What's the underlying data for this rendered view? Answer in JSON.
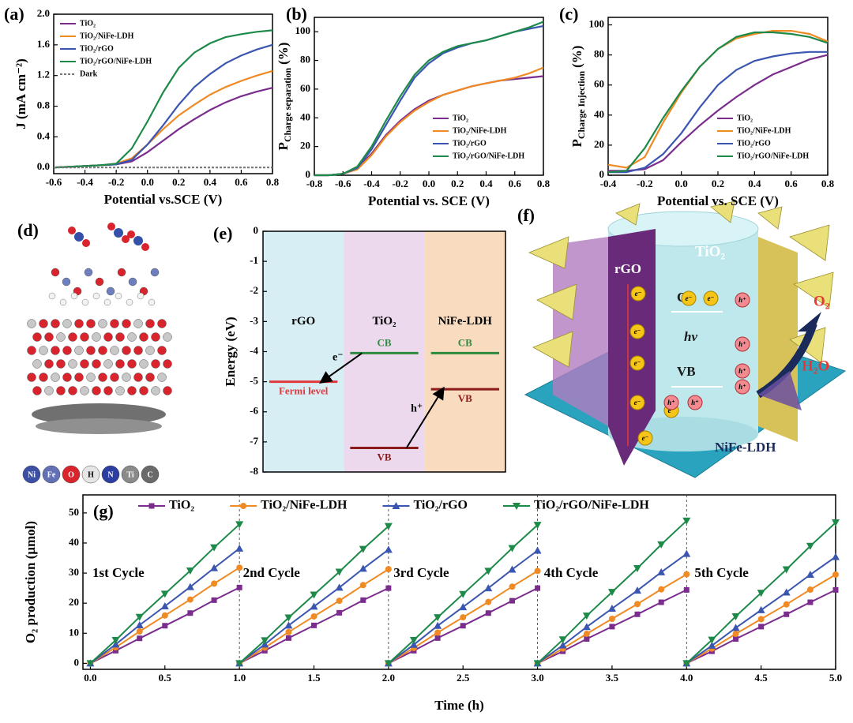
{
  "chart_data": [
    {
      "type": "line",
      "panel": "(a)",
      "ylabel": "J (mA cm⁻²)",
      "xlabel": "Potential vs.SCE (V)",
      "x": [
        -0.6,
        -0.5,
        -0.4,
        -0.3,
        -0.2,
        -0.1,
        0,
        0.1,
        0.2,
        0.3,
        0.4,
        0.5,
        0.6,
        0.7,
        0.8
      ],
      "xlim": [
        -0.6,
        0.8
      ],
      "xticks": [
        -0.6,
        -0.4,
        -0.2,
        {
          "value": 0,
          "label": "0.0"
        },
        0.2,
        0.4,
        0.6,
        0.8
      ],
      "ylim": [
        -0.08,
        2.0
      ],
      "yticks": [
        {
          "value": 0,
          "label": "0.0"
        },
        0.4,
        0.8,
        1.2,
        1.6,
        {
          "value": 2,
          "label": "2.0"
        }
      ],
      "legend": "upper left",
      "series": [
        {
          "name": "TiO₂",
          "color": "#7b2d8e",
          "values": [
            0,
            0.01,
            0.02,
            0.03,
            0.04,
            0.08,
            0.2,
            0.35,
            0.5,
            0.63,
            0.75,
            0.85,
            0.93,
            0.99,
            1.04
          ]
        },
        {
          "name": "TiO₂/NiFe-LDH",
          "color": "#f08a24",
          "values": [
            0,
            0.01,
            0.02,
            0.03,
            0.05,
            0.12,
            0.3,
            0.5,
            0.68,
            0.82,
            0.95,
            1.05,
            1.13,
            1.2,
            1.26
          ]
        },
        {
          "name": "TiO₂/rGO",
          "color": "#3b56b0",
          "values": [
            0,
            0.01,
            0.02,
            0.03,
            0.04,
            0.1,
            0.3,
            0.55,
            0.82,
            1.05,
            1.22,
            1.36,
            1.46,
            1.54,
            1.6
          ]
        },
        {
          "name": "TiO₂/rGO/NiFe-LDH",
          "color": "#1e8a4a",
          "values": [
            0,
            0.01,
            0.02,
            0.03,
            0.05,
            0.25,
            0.6,
            0.98,
            1.3,
            1.5,
            1.62,
            1.7,
            1.74,
            1.77,
            1.79
          ]
        },
        {
          "name": "Dark",
          "color": "#777777",
          "dash": true,
          "values": [
            0,
            0,
            0,
            0,
            0,
            0,
            0,
            0,
            0,
            0,
            0,
            0,
            0,
            0,
            0
          ]
        }
      ]
    },
    {
      "type": "line",
      "panel": "(b)",
      "ylabel": {
        "main": "P",
        "sub": "Charge separation",
        "unit": "(%)"
      },
      "xlabel": "Potential vs. SCE (V)",
      "x": [
        -0.8,
        -0.7,
        -0.6,
        -0.5,
        -0.4,
        -0.3,
        -0.2,
        -0.1,
        0,
        0.1,
        0.2,
        0.3,
        0.4,
        0.5,
        0.6,
        0.7,
        0.8
      ],
      "xlim": [
        -0.8,
        0.8
      ],
      "xticks": [
        -0.8,
        -0.6,
        -0.4,
        -0.2,
        {
          "value": 0,
          "label": "0.0"
        },
        0.2,
        0.4,
        0.6,
        0.8
      ],
      "ylim": [
        0,
        110
      ],
      "yticks": [
        0,
        20,
        40,
        60,
        80,
        100
      ],
      "legend": "lower right",
      "series": [
        {
          "name": "TiO₂",
          "color": "#7b2d8e",
          "values": [
            0,
            0,
            1,
            5,
            15,
            28,
            38,
            46,
            52,
            56,
            59,
            62,
            64,
            66,
            67,
            68,
            69
          ]
        },
        {
          "name": "TiO₂/NiFe-LDH",
          "color": "#f08a24",
          "values": [
            0,
            0,
            1,
            4,
            14,
            27,
            37,
            45,
            51,
            56,
            59,
            62,
            64,
            66,
            68,
            71,
            75
          ]
        },
        {
          "name": "TiO₂/rGO",
          "color": "#3b56b0",
          "values": [
            0,
            0,
            1,
            5,
            18,
            35,
            52,
            68,
            78,
            85,
            89,
            92,
            94,
            97,
            100,
            102,
            104
          ]
        },
        {
          "name": "TiO₂/rGO/NiFe-LDH",
          "color": "#1e8a4a",
          "values": [
            0,
            0,
            1,
            6,
            20,
            38,
            55,
            70,
            80,
            86,
            90,
            92,
            94,
            97,
            100,
            103,
            107
          ]
        }
      ]
    },
    {
      "type": "line",
      "panel": "(c)",
      "ylabel": {
        "main": "P",
        "sub": "Charge Injection",
        "unit": "(%)"
      },
      "xlabel": "Potential vs. SCE (V)",
      "x": [
        -0.4,
        -0.3,
        -0.2,
        -0.1,
        0,
        0.1,
        0.2,
        0.3,
        0.4,
        0.5,
        0.6,
        0.7,
        0.8
      ],
      "xlim": [
        -0.4,
        0.8
      ],
      "xticks": [
        -0.4,
        -0.2,
        {
          "value": 0,
          "label": "0.0"
        },
        0.2,
        0.4,
        0.6,
        0.8
      ],
      "ylim": [
        0,
        105
      ],
      "yticks": [
        0,
        20,
        40,
        60,
        80,
        100
      ],
      "legend": "lower right",
      "series": [
        {
          "name": "TiO₂",
          "color": "#7b2d8e",
          "values": [
            3,
            3,
            4,
            10,
            22,
            33,
            43,
            52,
            60,
            67,
            72,
            77,
            80
          ]
        },
        {
          "name": "TiO₂/NiFe-LDH",
          "color": "#f08a24",
          "values": [
            7,
            5,
            12,
            35,
            55,
            72,
            84,
            91,
            94,
            96,
            96,
            94,
            89
          ]
        },
        {
          "name": "TiO₂/rGO",
          "color": "#3b56b0",
          "values": [
            2,
            2,
            5,
            14,
            28,
            45,
            60,
            70,
            76,
            79,
            81,
            82,
            82
          ]
        },
        {
          "name": "TiO₂/rGO/NiFe-LDH",
          "color": "#1e8a4a",
          "values": [
            2,
            3,
            18,
            38,
            56,
            72,
            84,
            92,
            95,
            95,
            94,
            92,
            88
          ]
        }
      ]
    },
    {
      "type": "energy",
      "panel": "(e)",
      "ylabel": "Energy (eV)",
      "ylim": [
        -8,
        0
      ],
      "yticks": [
        -8,
        -7,
        -6,
        -5,
        -4,
        -3,
        -2,
        -1,
        0
      ],
      "regions": [
        "rGO",
        "TiO₂",
        "NiFe-LDH"
      ],
      "region_colors": [
        "#d8eef5",
        "#ecd9ee",
        "#f9dcc0"
      ],
      "levels": [
        {
          "region": 0,
          "label": "Fermi level",
          "value": -5.0,
          "color": "#e0393e"
        },
        {
          "region": 1,
          "label": "CB",
          "value": -4.05,
          "color": "#2e8b3e"
        },
        {
          "region": 1,
          "label": "VB",
          "value": -7.2,
          "color": "#8b1a1a"
        },
        {
          "region": 2,
          "label": "CB",
          "value": -4.05,
          "color": "#2e8b3e"
        },
        {
          "region": 2,
          "label": "VB",
          "value": -5.25,
          "color": "#8b1a1a"
        }
      ],
      "annotations": [
        "e⁻",
        "h⁺"
      ]
    },
    {
      "type": "line",
      "panel": "(g)",
      "ylabel": "O₂ production (μmol)",
      "xlabel": "Time (h)",
      "x": [
        0,
        0.17,
        0.33,
        0.5,
        0.67,
        0.83,
        1,
        null,
        1,
        1.17,
        1.33,
        1.5,
        1.67,
        1.83,
        2,
        null,
        2,
        2.17,
        2.33,
        2.5,
        2.67,
        2.83,
        3,
        null,
        3,
        3.17,
        3.33,
        3.5,
        3.67,
        3.83,
        4,
        null,
        4,
        4.17,
        4.33,
        4.5,
        4.67,
        4.83,
        5
      ],
      "xlim": [
        -0.05,
        5.0
      ],
      "xticks": [
        {
          "value": 0,
          "label": "0.0"
        },
        0.5,
        {
          "value": 1,
          "label": "1.0"
        },
        1.5,
        {
          "value": 2,
          "label": "2.0"
        },
        2.5,
        {
          "value": 3,
          "label": "3.0"
        },
        3.5,
        {
          "value": 4,
          "label": "4.0"
        },
        4.5,
        {
          "value": 5,
          "label": "5.0"
        }
      ],
      "ylim": [
        -2,
        56
      ],
      "yticks": [
        0,
        10,
        20,
        30,
        40,
        50
      ],
      "legend": "top",
      "annotations": [
        "1st Cycle",
        "2nd Cycle",
        "3rd Cycle",
        "4th Cycle",
        "5th Cycle"
      ],
      "series": [
        {
          "name": "TiO₂",
          "color": "#7b2d8e",
          "marker": "square",
          "values": [
            0,
            4.2,
            8.3,
            12.5,
            16.7,
            21,
            25.2,
            null,
            0,
            4.2,
            8.4,
            12.6,
            16.8,
            21,
            25,
            null,
            0,
            4.2,
            8.4,
            12.5,
            16.7,
            20.8,
            25,
            null,
            0,
            4,
            8.1,
            12.2,
            16.3,
            20.3,
            24.4,
            null,
            0,
            4,
            8.1,
            12.2,
            16.3,
            20.3,
            24.4
          ]
        },
        {
          "name": "TiO₂/NiFe-LDH",
          "color": "#f08a24",
          "marker": "circle",
          "values": [
            0,
            5.3,
            10.6,
            15.9,
            21.2,
            26.5,
            31.8,
            null,
            0,
            5.2,
            10.4,
            15.6,
            20.8,
            26,
            31.3,
            null,
            0,
            5.1,
            10.2,
            15.3,
            20.4,
            25.5,
            30.7,
            null,
            0,
            4.9,
            9.8,
            14.8,
            19.7,
            24.6,
            29.6,
            null,
            0,
            4.9,
            9.8,
            14.7,
            19.6,
            24.5,
            29.5
          ]
        },
        {
          "name": "TiO₂/rGO",
          "color": "#3b56b0",
          "marker": "triangle-up",
          "values": [
            0,
            6.3,
            12.7,
            19,
            25.4,
            31.7,
            38.2,
            null,
            0,
            6.3,
            12.6,
            18.9,
            25.2,
            31.5,
            37.8,
            null,
            0,
            6.2,
            12.5,
            18.7,
            25,
            31.2,
            37.5,
            null,
            0,
            6,
            12.1,
            18.2,
            24.2,
            30.3,
            36.4,
            null,
            0,
            5.9,
            11.8,
            17.7,
            23.6,
            29.5,
            35.4
          ]
        },
        {
          "name": "TiO₂/rGO/NiFe-LDH",
          "color": "#1e8a4a",
          "marker": "triangle-down",
          "values": [
            0,
            7.7,
            15.4,
            23.1,
            30.8,
            38.5,
            46.2,
            null,
            0,
            7.6,
            15.2,
            22.8,
            30.4,
            38,
            45.6,
            null,
            0,
            7.7,
            15.3,
            23,
            30.7,
            38.3,
            46,
            null,
            0,
            7.9,
            15.8,
            23.7,
            31.6,
            39.5,
            47.4,
            null,
            0,
            7.8,
            15.6,
            23.4,
            31.2,
            39,
            46.8
          ]
        }
      ]
    }
  ],
  "panel_d": {
    "panel": "(d)",
    "legend": [
      "Ni",
      "Fe",
      "O",
      "H",
      "N",
      "Ti",
      "C"
    ]
  },
  "panel_f": {
    "panel": "(f)",
    "rgo": "rGO",
    "tio2": "TiO₂",
    "cb": "CB",
    "hv": "hν",
    "vb": "VB",
    "ldh": "NiFe-LDH",
    "o2": "O₂",
    "h2o": "H₂O",
    "electron": "e⁻",
    "hole": "h⁺"
  }
}
